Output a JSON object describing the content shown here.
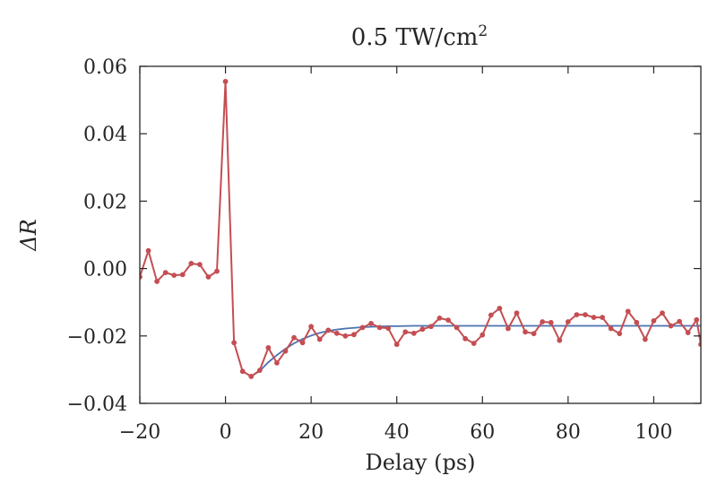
{
  "chart_data": {
    "type": "line",
    "title": "0.5 TW/cm",
    "title_superscript": "2",
    "xlabel": "Delay (ps)",
    "ylabel": "ΔR",
    "xlim": [
      -20,
      111
    ],
    "ylim": [
      -0.04,
      0.06
    ],
    "x_ticks": [
      -20,
      0,
      20,
      40,
      60,
      80,
      100
    ],
    "x_tick_labels": [
      "−20",
      "0",
      "20",
      "40",
      "60",
      "80",
      "100"
    ],
    "y_ticks": [
      -0.04,
      -0.02,
      0.0,
      0.02,
      0.04,
      0.06
    ],
    "y_tick_labels": [
      "−0.04",
      "−0.02",
      "0.00",
      "0.02",
      "0.04",
      "0.06"
    ],
    "grid": false,
    "legend": "none",
    "series": [
      {
        "style": "line-with-markers",
        "color": "#c44e52",
        "x": [
          -20,
          -18,
          -16,
          -14,
          -12,
          -10,
          -8,
          -6,
          -4,
          -2,
          0,
          2,
          4,
          6,
          8,
          10,
          12,
          14,
          16,
          18,
          20,
          22,
          24,
          26,
          28,
          30,
          32,
          34,
          36,
          38,
          40,
          42,
          44,
          46,
          48,
          50,
          52,
          54,
          56,
          58,
          60,
          62,
          64,
          66,
          68,
          70,
          72,
          74,
          76,
          78,
          80,
          82,
          84,
          86,
          88,
          90,
          92,
          94,
          96,
          98,
          100,
          102,
          104,
          106,
          108,
          110,
          111
        ],
        "y": [
          -0.0025,
          0.0053,
          -0.0038,
          -0.0012,
          -0.002,
          -0.0018,
          0.0015,
          0.0012,
          -0.0025,
          -0.0008,
          0.0555,
          -0.022,
          -0.0305,
          -0.032,
          -0.0302,
          -0.0235,
          -0.028,
          -0.0245,
          -0.0205,
          -0.022,
          -0.0172,
          -0.021,
          -0.0183,
          -0.0192,
          -0.02,
          -0.0196,
          -0.0175,
          -0.0163,
          -0.0175,
          -0.0177,
          -0.0225,
          -0.0188,
          -0.0192,
          -0.018,
          -0.0172,
          -0.0147,
          -0.0153,
          -0.0175,
          -0.0208,
          -0.0222,
          -0.0197,
          -0.0138,
          -0.0118,
          -0.0178,
          -0.0132,
          -0.0188,
          -0.0193,
          -0.0158,
          -0.016,
          -0.0213,
          -0.0158,
          -0.0137,
          -0.0137,
          -0.0145,
          -0.0145,
          -0.0178,
          -0.0193,
          -0.0127,
          -0.016,
          -0.021,
          -0.0155,
          -0.0132,
          -0.017,
          -0.0157,
          -0.019,
          -0.0152,
          -0.0225
        ]
      },
      {
        "style": "line",
        "color": "#4c72b0",
        "x": [
          6,
          8,
          10,
          12,
          14,
          16,
          18,
          20,
          22,
          24,
          26,
          28,
          30,
          32,
          34,
          36,
          38,
          40,
          44,
          48,
          52,
          56,
          60,
          70,
          80,
          90,
          100,
          111
        ],
        "y": [
          -0.032,
          -0.0304,
          -0.0278,
          -0.0257,
          -0.0238,
          -0.0222,
          -0.0209,
          -0.0199,
          -0.0191,
          -0.0185,
          -0.0181,
          -0.0178,
          -0.0176,
          -0.0174,
          -0.0173,
          -0.0172,
          -0.0171,
          -0.0171,
          -0.017,
          -0.017,
          -0.017,
          -0.017,
          -0.017,
          -0.017,
          -0.017,
          -0.017,
          -0.017,
          -0.017
        ]
      }
    ]
  }
}
